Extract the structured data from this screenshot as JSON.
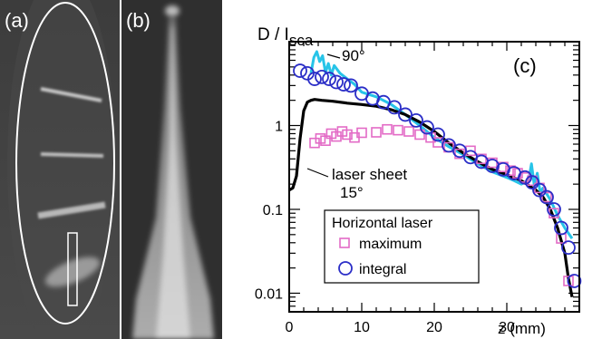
{
  "panels": {
    "a_label": "(a)",
    "b_label": "(b)",
    "c_label": "(c)"
  },
  "chart_data": {
    "type": "scatter",
    "yscale": "log",
    "xlim": [
      0,
      40
    ],
    "ylim": [
      0.006,
      10
    ],
    "x_ticks": [
      {
        "value": 0,
        "label": "0"
      },
      {
        "value": 10,
        "label": "10"
      },
      {
        "value": 20,
        "label": "20"
      },
      {
        "value": 30,
        "label": "30"
      }
    ],
    "x_unit_label": "z (mm)",
    "y_ticks": [
      {
        "value": 1,
        "label": "1"
      },
      {
        "value": 0.1,
        "label": "0.1"
      },
      {
        "value": 0.01,
        "label": "0.01"
      }
    ],
    "ylabel_main": "D / I",
    "ylabel_sub": "sca",
    "legend": {
      "title": "Horizontal laser",
      "entries": [
        {
          "label": "maximum",
          "marker": "square",
          "color": "#e36bc6"
        },
        {
          "label": "integral",
          "marker": "circle",
          "color": "#2b2ec7"
        }
      ],
      "placement": "bottom-left"
    },
    "annotations": [
      {
        "text": "90°",
        "x": 7.2,
        "y": 6.5
      },
      {
        "text": "laser sheet",
        "x": 3.0,
        "y": 0.38
      },
      {
        "text": "15°",
        "x": 3.0,
        "y": 0.2
      }
    ],
    "series": [
      {
        "marker": "line",
        "color": "#27c4e8",
        "x": [
          3.0,
          3.4,
          3.8,
          4.2,
          4.6,
          5.0,
          5.4,
          5.8,
          6.2,
          7,
          8,
          9,
          10,
          12,
          14,
          16,
          18,
          20,
          22,
          24,
          26,
          28,
          30,
          31,
          32,
          33,
          33.4,
          33.8,
          34.2,
          34.6,
          35,
          36,
          37,
          38,
          39
        ],
        "y": [
          4.2,
          6.5,
          7.6,
          5.8,
          6.8,
          4.3,
          5.5,
          4.0,
          5.2,
          4.2,
          3.6,
          3.1,
          2.5,
          2.2,
          1.8,
          1.35,
          1.0,
          0.72,
          0.56,
          0.45,
          0.35,
          0.28,
          0.24,
          0.22,
          0.2,
          0.22,
          0.35,
          0.19,
          0.27,
          0.16,
          0.18,
          0.13,
          0.085,
          0.06,
          0.045
        ]
      },
      {
        "marker": "line",
        "color": "#000000",
        "x": [
          0,
          0.5,
          1.0,
          1.5,
          2.0,
          2.5,
          3.0,
          3.5,
          4.5,
          6,
          8,
          10,
          12,
          14,
          16,
          18,
          20,
          22,
          24,
          26,
          28,
          30,
          32,
          34,
          35,
          36,
          37,
          38,
          38.5,
          39
        ],
        "y": [
          0.17,
          0.18,
          0.25,
          0.7,
          1.5,
          1.9,
          2.0,
          2.05,
          2.0,
          1.95,
          1.85,
          1.78,
          1.7,
          1.55,
          1.35,
          1.1,
          0.85,
          0.62,
          0.47,
          0.37,
          0.3,
          0.26,
          0.22,
          0.17,
          0.14,
          0.1,
          0.06,
          0.03,
          0.015,
          0.009
        ]
      },
      {
        "marker": "square",
        "color": "#e36bc6",
        "x": [
          3.5,
          4.3,
          5.0,
          5.8,
          6.5,
          7.3,
          8.0,
          9.0,
          10.0,
          12.0,
          13.5,
          15.0,
          16.5,
          18.0,
          19.5,
          20.5,
          22.0,
          23.5,
          25.0,
          26.5,
          28.0,
          29.5,
          30.5,
          31.5,
          32.5,
          33.5,
          34.5,
          35.5,
          36.5,
          37.5,
          38.5
        ],
        "y": [
          0.62,
          0.7,
          0.66,
          0.8,
          0.74,
          0.85,
          0.78,
          0.72,
          0.82,
          0.83,
          0.9,
          0.88,
          0.85,
          0.78,
          0.72,
          0.63,
          0.55,
          0.46,
          0.5,
          0.4,
          0.36,
          0.32,
          0.29,
          0.27,
          0.24,
          0.22,
          0.18,
          0.14,
          0.09,
          0.045,
          0.014
        ]
      },
      {
        "marker": "circle",
        "color": "#2b2ec7",
        "x": [
          1.5,
          2.5,
          3.5,
          4.5,
          5.5,
          6.5,
          7.5,
          8.5,
          10,
          11.5,
          13,
          14.5,
          16,
          17.5,
          19,
          20.5,
          22,
          23.5,
          25,
          26.5,
          28,
          29.5,
          31,
          32.5,
          33.5,
          34.5,
          35.5,
          36.5,
          37.5,
          38.5,
          39.3
        ],
        "y": [
          4.5,
          4.2,
          3.6,
          3.8,
          3.6,
          3.3,
          3.1,
          3.0,
          2.4,
          2.1,
          1.9,
          1.65,
          1.35,
          1.15,
          0.95,
          0.78,
          0.58,
          0.5,
          0.42,
          0.37,
          0.33,
          0.3,
          0.27,
          0.24,
          0.21,
          0.17,
          0.14,
          0.1,
          0.06,
          0.035,
          0.014
        ]
      }
    ]
  }
}
